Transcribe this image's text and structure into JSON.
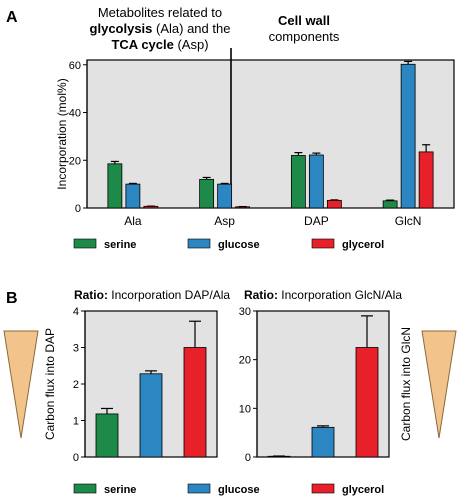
{
  "panels": {
    "a": {
      "label": "A",
      "header_left": {
        "line1": "Metabolites related to",
        "line2_bold": "glycolysis",
        "line2_rest": " (Ala) and the",
        "line3_bold": "TCA cycle",
        "line3_rest": " (Asp)"
      },
      "header_right": {
        "line1": "Cell wall",
        "line2": "components"
      }
    },
    "b": {
      "label": "B",
      "title_left_bold": "Ratio:",
      "title_left_rest": " Incorporation DAP/Ala",
      "title_right_bold": "Ratio:",
      "title_right_rest": " Incorporation GlcN/Ala",
      "left_axis_label": "Carbon flux into DAP",
      "right_axis_label": "Carbon flux into GlcN"
    }
  },
  "legend": [
    {
      "name": "serine",
      "color": "#1e8a4a"
    },
    {
      "name": "glucose",
      "color": "#2b86c1"
    },
    {
      "name": "glycerol",
      "color": "#e8202a"
    }
  ],
  "colors": {
    "plot_bg": "#e2e2e2",
    "triangle_fill": "#f2c48c",
    "triangle_stroke": "#8a6a3a"
  },
  "chart_data": [
    {
      "type": "bar",
      "panel": "A",
      "categories": [
        "Ala",
        "Asp",
        "DAP",
        "GlcN"
      ],
      "ylabel": "Incorporation (mol%)",
      "ylim": [
        0,
        62
      ],
      "yticks": [
        0,
        20,
        40,
        60
      ],
      "series": [
        {
          "name": "serine",
          "values": [
            18.5,
            12,
            22,
            3
          ],
          "errors": [
            1,
            0.8,
            1.2,
            0.3
          ]
        },
        {
          "name": "glucose",
          "values": [
            10,
            10,
            22.2,
            60.2
          ],
          "errors": [
            0.3,
            0.3,
            0.8,
            1.2
          ]
        },
        {
          "name": "glycerol",
          "values": [
            0.7,
            0.5,
            3.2,
            23.5
          ],
          "errors": [
            0.1,
            0.1,
            0.2,
            3
          ]
        }
      ]
    },
    {
      "type": "bar",
      "panel": "B-left",
      "categories": [
        "serine",
        "glucose",
        "glycerol"
      ],
      "title": "Ratio: Incorporation DAP/Ala",
      "ylabel": "Carbon flux into DAP",
      "ylim": [
        0,
        4
      ],
      "yticks": [
        0,
        1,
        2,
        3,
        4
      ],
      "values": [
        1.18,
        2.28,
        3.0
      ],
      "errors": [
        0.15,
        0.08,
        0.72
      ]
    },
    {
      "type": "bar",
      "panel": "B-right",
      "categories": [
        "serine",
        "glucose",
        "glycerol"
      ],
      "title": "Ratio: Incorporation GlcN/Ala",
      "ylabel": "Carbon flux into GlcN",
      "ylim": [
        0,
        30
      ],
      "yticks": [
        0,
        10,
        20,
        30
      ],
      "values": [
        0.15,
        6.1,
        22.5
      ],
      "errors": [
        0.05,
        0.3,
        6.5
      ]
    }
  ]
}
